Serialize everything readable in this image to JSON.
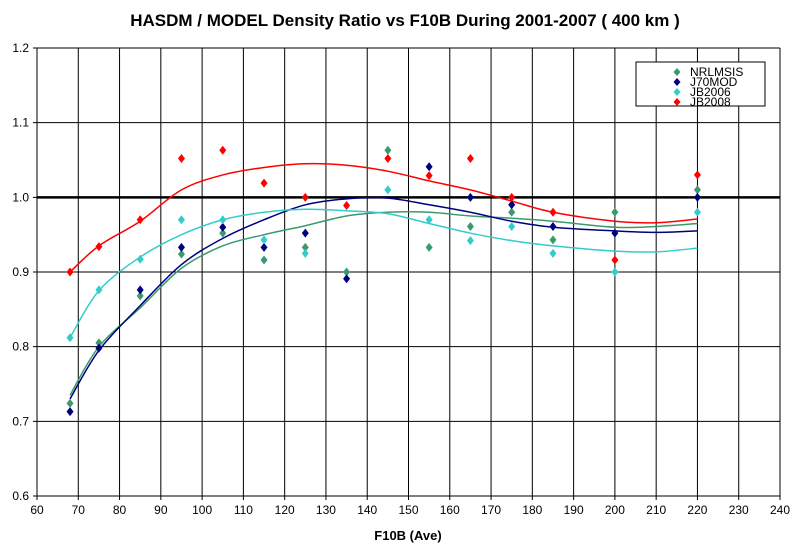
{
  "chart_data": {
    "type": "scatter",
    "title": "HASDM / MODEL Density Ratio vs F10B During 2001-2007 ( 400 km )",
    "xlabel": "F10B (Ave)",
    "ylabel": "",
    "xlim": [
      60,
      240
    ],
    "ylim": [
      0.6,
      1.2
    ],
    "xticks": [
      60,
      70,
      80,
      90,
      100,
      110,
      120,
      130,
      140,
      150,
      160,
      170,
      180,
      190,
      200,
      210,
      220,
      230,
      240
    ],
    "yticks": [
      "0.6",
      "0.7",
      "0.8",
      "0.9",
      "1.0",
      "1.1",
      "1.2"
    ],
    "reference_line": 1.0,
    "grid": true,
    "legend_position": "top-right",
    "x": [
      68,
      75,
      85,
      95,
      105,
      115,
      125,
      135,
      145,
      155,
      165,
      175,
      185,
      200,
      220
    ],
    "series": [
      {
        "name": "NRLMSIS",
        "color": "#3a9a6e",
        "values": [
          0.724,
          0.805,
          0.868,
          0.924,
          0.952,
          0.916,
          0.933,
          0.9,
          1.063,
          0.933,
          0.961,
          0.98,
          0.943,
          0.98,
          1.01
        ]
      },
      {
        "name": "J70MOD",
        "color": "#00007f",
        "values": [
          0.713,
          0.798,
          0.876,
          0.933,
          0.96,
          0.933,
          0.952,
          0.891,
          null,
          1.041,
          1.0,
          0.99,
          0.961,
          0.952,
          1.0
        ]
      },
      {
        "name": "JB2006",
        "color": "#33cccc",
        "values": [
          0.812,
          0.876,
          0.917,
          0.97,
          0.97,
          0.943,
          0.925,
          null,
          1.01,
          0.97,
          0.942,
          0.961,
          0.925,
          0.9,
          0.98
        ]
      },
      {
        "name": "JB2008",
        "color": "#ff0000",
        "values": [
          0.9,
          0.934,
          0.97,
          1.052,
          1.063,
          1.019,
          1.0,
          0.989,
          1.052,
          1.029,
          1.052,
          1.0,
          0.98,
          0.916,
          1.03
        ]
      }
    ],
    "trend_x": [
      68,
      75,
      85,
      95,
      105,
      115,
      125,
      135,
      145,
      155,
      165,
      175,
      185,
      200,
      210,
      220
    ],
    "trends": [
      {
        "color": "#3a9a6e",
        "values": [
          0.735,
          0.8,
          0.852,
          0.905,
          0.935,
          0.95,
          0.962,
          0.975,
          0.98,
          0.98,
          0.975,
          0.972,
          0.968,
          0.96,
          0.961,
          0.965
        ]
      },
      {
        "color": "#00007f",
        "values": [
          0.73,
          0.795,
          0.855,
          0.91,
          0.945,
          0.97,
          0.99,
          0.998,
          0.999,
          0.99,
          0.98,
          0.968,
          0.96,
          0.955,
          0.953,
          0.955
        ]
      },
      {
        "color": "#33cccc",
        "values": [
          0.812,
          0.875,
          0.92,
          0.95,
          0.97,
          0.98,
          0.984,
          0.982,
          0.978,
          0.965,
          0.952,
          0.942,
          0.935,
          0.928,
          0.927,
          0.932
        ]
      },
      {
        "color": "#ff0000",
        "values": [
          0.9,
          0.935,
          0.968,
          1.01,
          1.03,
          1.04,
          1.045,
          1.043,
          1.035,
          1.022,
          1.01,
          0.995,
          0.98,
          0.968,
          0.966,
          0.971
        ]
      }
    ]
  }
}
